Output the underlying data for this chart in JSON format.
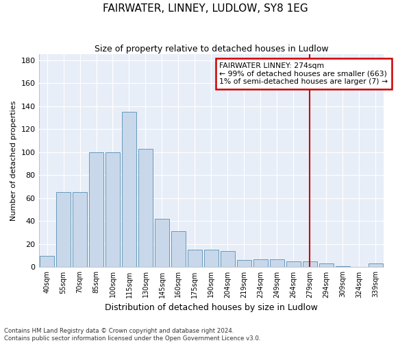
{
  "title": "FAIRWATER, LINNEY, LUDLOW, SY8 1EG",
  "subtitle": "Size of property relative to detached houses in Ludlow",
  "xlabel": "Distribution of detached houses by size in Ludlow",
  "ylabel": "Number of detached properties",
  "bar_color": "#c8d8ea",
  "bar_edge_color": "#6699bb",
  "background_color": "#e8eef8",
  "grid_color": "#ffffff",
  "fig_background": "#ffffff",
  "categories": [
    "40sqm",
    "55sqm",
    "70sqm",
    "85sqm",
    "100sqm",
    "115sqm",
    "130sqm",
    "145sqm",
    "160sqm",
    "175sqm",
    "190sqm",
    "204sqm",
    "219sqm",
    "234sqm",
    "249sqm",
    "264sqm",
    "279sqm",
    "294sqm",
    "309sqm",
    "324sqm",
    "339sqm"
  ],
  "values": [
    10,
    65,
    65,
    100,
    100,
    135,
    103,
    42,
    31,
    15,
    15,
    14,
    6,
    7,
    7,
    5,
    5,
    3,
    1,
    0,
    3
  ],
  "ylim": [
    0,
    185
  ],
  "yticks": [
    0,
    20,
    40,
    60,
    80,
    100,
    120,
    140,
    160,
    180
  ],
  "annotation_line1": "FAIRWATER LINNEY: 274sqm",
  "annotation_line2": "← 99% of detached houses are smaller (663)",
  "annotation_line3": "1% of semi-detached houses are larger (7) →",
  "annotation_box_color": "#ffffff",
  "annotation_box_edge_color": "#cc0000",
  "vline_color": "#cc0000",
  "vline_x_index": 16,
  "footer_line1": "Contains HM Land Registry data © Crown copyright and database right 2024.",
  "footer_line2": "Contains public sector information licensed under the Open Government Licence v3.0."
}
